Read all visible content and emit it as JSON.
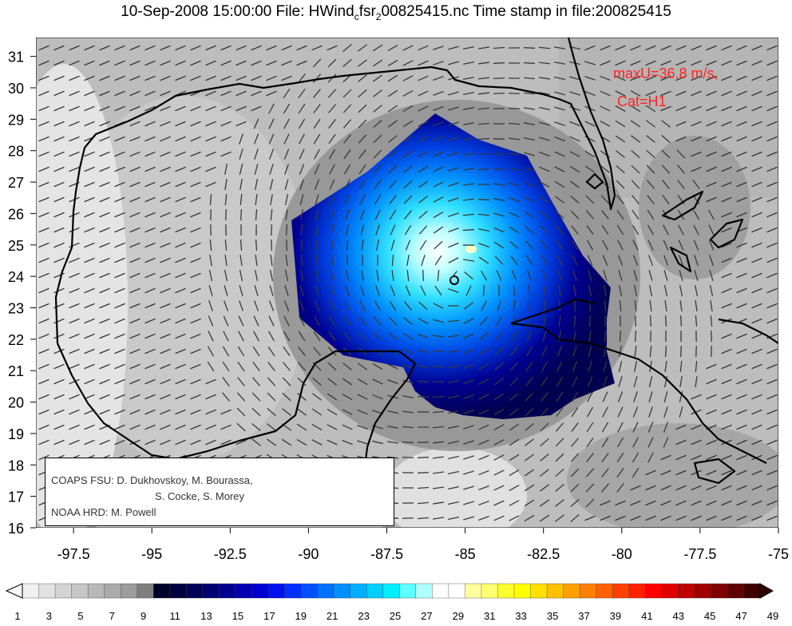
{
  "header": {
    "title_pre": "10-Sep-2008 15:00:00 File: HWind",
    "title_sub1": "c",
    "title_mid": "fsr",
    "title_sub2": "2",
    "title_post": "00825415.nc Time stamp in file:200825415"
  },
  "storm": {
    "max_wind": "maxU=36.8 m/s,",
    "category": "Cat=H1",
    "label_color": "#ff2222"
  },
  "credits": {
    "line1": "COAPS FSU: D. Dukhovskoy, M. Bourassa,",
    "line2": "S. Cocke, S. Morey",
    "line3": "NOAA HRD:  M. Powell"
  },
  "map": {
    "lon_range": [
      -98.7,
      -75.0
    ],
    "lat_range": [
      16.0,
      31.6
    ],
    "lon_ticks": [
      "-97.5",
      "-95",
      "-92.5",
      "-90",
      "-87.5",
      "-85",
      "-82.5",
      "-80",
      "-77.5",
      "-75"
    ],
    "lat_ticks": [
      "16",
      "17",
      "18",
      "19",
      "20",
      "21",
      "22",
      "23",
      "24",
      "25",
      "26",
      "27",
      "28",
      "29",
      "30",
      "31"
    ],
    "storm_center": {
      "lon": -85.2,
      "lat": 23.8
    }
  },
  "colorbar": {
    "labels": [
      "1",
      "3",
      "5",
      "7",
      "9",
      "11",
      "13",
      "15",
      "17",
      "19",
      "21",
      "23",
      "25",
      "27",
      "29",
      "31",
      "33",
      "35",
      "37",
      "39",
      "41",
      "43",
      "45",
      "47",
      "49"
    ],
    "colors": [
      "#f0f0f0",
      "#e2e2e2",
      "#d4d4d4",
      "#c6c6c6",
      "#b8b8b8",
      "#aaaaaa",
      "#9c9c9c",
      "#7e7e7e",
      "#00002a",
      "#000040",
      "#000058",
      "#000070",
      "#000090",
      "#0000b0",
      "#0000d0",
      "#0010ee",
      "#0030ff",
      "#0050ff",
      "#0070ff",
      "#0090ff",
      "#00b0ff",
      "#00d0ff",
      "#00eeff",
      "#60ffff",
      "#b0ffff",
      "#ffffff",
      "#ffffff",
      "#ffffa0",
      "#ffff70",
      "#ffff30",
      "#ffff00",
      "#ffe000",
      "#ffc000",
      "#ffa000",
      "#ff8000",
      "#ff6000",
      "#ff4000",
      "#ff2000",
      "#ff0000",
      "#e00000",
      "#c00000",
      "#a00000",
      "#800000",
      "#600000",
      "#400000"
    ]
  }
}
